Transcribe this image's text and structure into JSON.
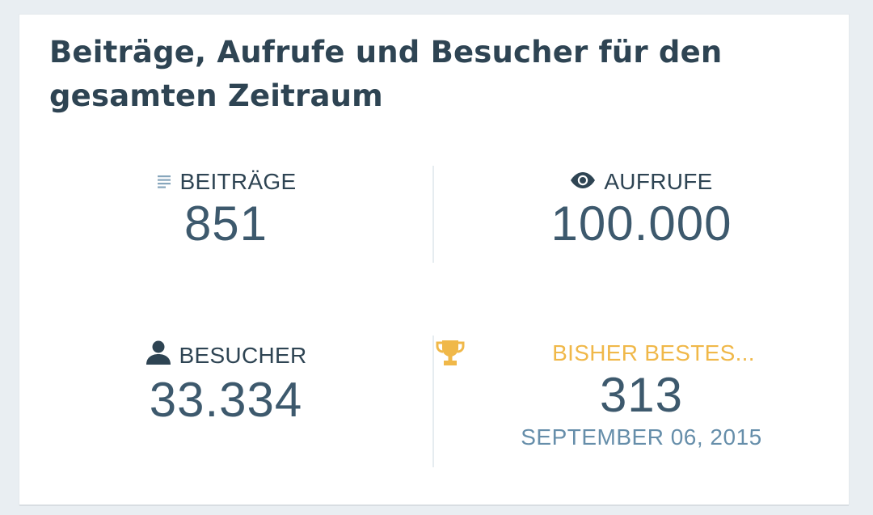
{
  "card": {
    "title": "Beiträge, Aufrufe und Besucher für den gesamten Zeitraum"
  },
  "stats": {
    "posts": {
      "label": "BEITRÄGE",
      "value": "851",
      "icon": "posts-icon"
    },
    "views": {
      "label": "AUFRUFE",
      "value": "100.000",
      "icon": "eye-icon"
    },
    "visitors": {
      "label": "BESUCHER",
      "value": "33.334",
      "icon": "person-icon"
    },
    "best": {
      "label": "BISHER BESTES...",
      "value": "313",
      "date": "SEPTEMBER 06, 2015",
      "icon": "trophy-icon"
    }
  },
  "colors": {
    "title": "#2e4453",
    "value": "#3d596d",
    "best_label": "#f0b849",
    "date": "#668eaa",
    "posts_icon": "#87a6bc"
  }
}
